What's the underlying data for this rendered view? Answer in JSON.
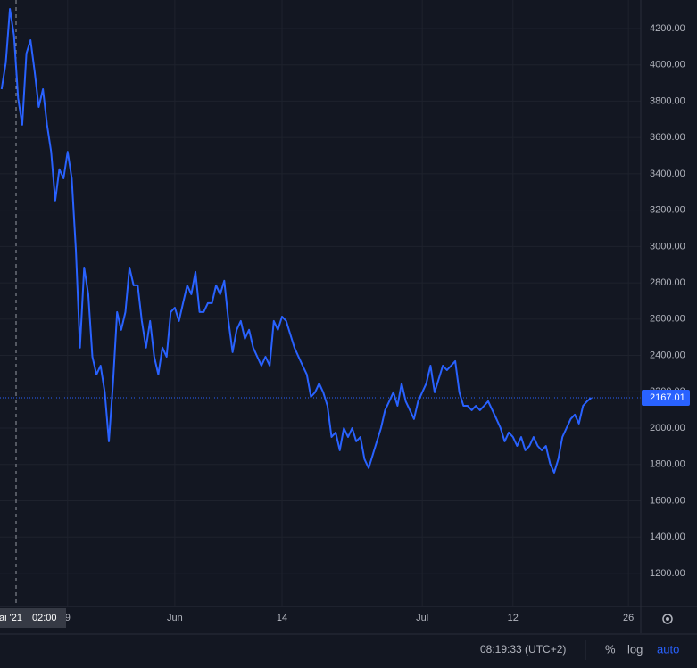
{
  "chart_data": {
    "type": "line",
    "color": "#2962ff",
    "grid": true,
    "x": [
      10,
      10.5,
      11,
      11.5,
      12,
      12.5,
      13,
      13.5,
      14,
      14.5,
      15,
      15.5,
      16,
      16.5,
      17,
      17.5,
      18,
      18.5,
      19,
      19.5,
      20,
      20.5,
      21,
      21.5,
      22,
      22.5,
      23,
      23.5,
      24,
      24.5,
      25,
      25.5,
      26,
      26.5,
      27,
      27.5,
      28,
      28.5,
      29,
      29.5,
      30,
      30.5,
      31,
      31.5,
      32,
      32.5,
      33,
      33.5,
      34,
      34.5,
      35,
      35.5,
      36,
      36.5,
      37,
      37.5,
      38,
      38.5,
      39,
      39.5,
      40,
      40.5,
      41,
      41.5,
      42,
      42.5,
      43,
      43.5,
      44,
      44.5,
      45,
      45.5,
      46,
      46.5,
      47,
      47.5,
      48,
      48.5,
      49,
      49.5,
      50,
      50.5,
      51,
      51.5,
      52,
      52.5,
      53,
      53.5,
      54,
      54.5,
      55,
      55.5,
      56,
      56.5,
      57,
      57.5,
      58,
      58.5,
      59,
      59.5,
      60,
      60.5,
      61,
      61.5,
      62,
      62.5,
      63,
      63.5,
      64,
      64.5,
      65,
      65.5,
      66,
      66.5,
      67,
      67.5,
      68,
      68.5,
      69,
      69.5,
      70,
      70.5,
      71,
      71.5,
      72,
      72.5,
      73,
      73.5,
      74,
      74.5,
      75,
      75.5,
      76,
      76.5,
      77,
      77.5,
      78,
      78.5,
      79,
      79.5,
      80,
      80.5,
      81,
      81.5
    ],
    "values": [
      3866,
      4013,
      4308,
      4161,
      3817,
      3670,
      4063,
      4136,
      3964,
      3768,
      3866,
      3670,
      3522,
      3253,
      3425,
      3375,
      3522,
      3375,
      2982,
      2443,
      2884,
      2737,
      2393,
      2295,
      2344,
      2197,
      1927,
      2246,
      2639,
      2541,
      2639,
      2884,
      2786,
      2786,
      2590,
      2443,
      2590,
      2393,
      2295,
      2443,
      2393,
      2639,
      2663,
      2590,
      2688,
      2786,
      2737,
      2860,
      2639,
      2639,
      2688,
      2688,
      2786,
      2737,
      2811,
      2590,
      2418,
      2541,
      2590,
      2492,
      2541,
      2443,
      2393,
      2344,
      2393,
      2344,
      2590,
      2541,
      2614,
      2590,
      2516,
      2443,
      2393,
      2344,
      2295,
      2172,
      2197,
      2246,
      2197,
      2123,
      1951,
      1976,
      1878,
      2000,
      1951,
      2000,
      1927,
      1951,
      1829,
      1780,
      1853,
      1927,
      2000,
      2099,
      2148,
      2197,
      2123,
      2246,
      2148,
      2099,
      2050,
      2148,
      2197,
      2246,
      2344,
      2197,
      2270,
      2344,
      2319,
      2344,
      2369,
      2197,
      2123,
      2123,
      2099,
      2123,
      2099,
      2123,
      2148,
      2099,
      2050,
      2000,
      1927,
      1976,
      1951,
      1902,
      1951,
      1878,
      1902,
      1951,
      1902,
      1878,
      1902,
      1804,
      1755,
      1829,
      1951,
      2000,
      2050,
      2074,
      2025,
      2123,
      2148,
      2167
    ],
    "xlim": [
      9.8,
      87.5
    ],
    "xticks": [
      {
        "value": 18,
        "label": "9"
      },
      {
        "value": 31,
        "label": "Jun"
      },
      {
        "value": 44,
        "label": "14"
      },
      {
        "value": 61,
        "label": "Jul"
      },
      {
        "value": 72,
        "label": "12"
      },
      {
        "value": 86,
        "label": "26"
      }
    ],
    "ylim": [
      1018,
      4357
    ],
    "yticks": [
      {
        "value": 1200,
        "label": "1200.00"
      },
      {
        "value": 1400,
        "label": "1400.00"
      },
      {
        "value": 1600,
        "label": "1600.00"
      },
      {
        "value": 1800,
        "label": "1800.00"
      },
      {
        "value": 2000,
        "label": "2000.00"
      },
      {
        "value": 2200,
        "label": "2200.00"
      },
      {
        "value": 2400,
        "label": "2400.00"
      },
      {
        "value": 2600,
        "label": "2600.00"
      },
      {
        "value": 2800,
        "label": "2800.00"
      },
      {
        "value": 3000,
        "label": "3000.00"
      },
      {
        "value": 3200,
        "label": "3200.00"
      },
      {
        "value": 3400,
        "label": "3400.00"
      },
      {
        "value": 3600,
        "label": "3600.00"
      },
      {
        "value": 3800,
        "label": "3800.00"
      },
      {
        "value": 4000,
        "label": "4000.00"
      },
      {
        "value": 4200,
        "label": "4200.00"
      }
    ],
    "last_price": 2167.01,
    "crosshair_date": "ai '21",
    "crosshair_time": "02:00"
  },
  "status_bar": {
    "clock": "08:19:33 (UTC+2)",
    "percent": "%",
    "log": "log",
    "auto": "auto"
  }
}
